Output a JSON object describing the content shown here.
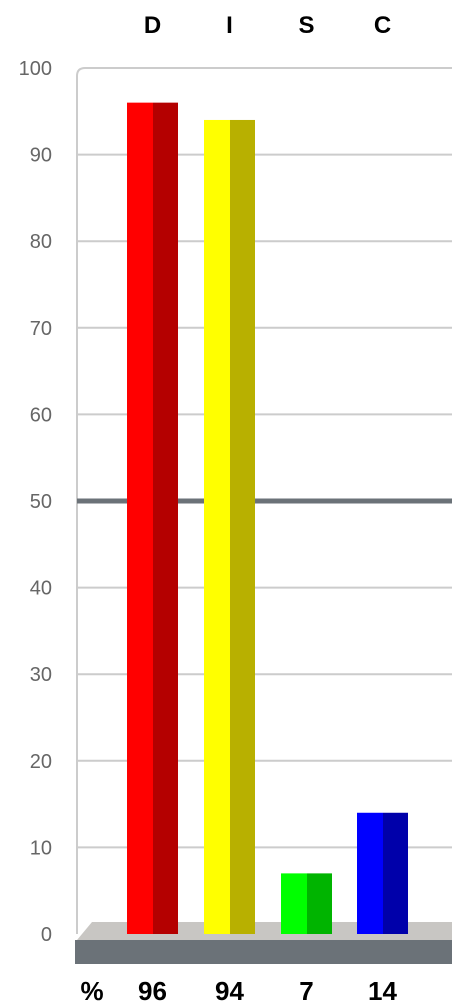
{
  "chart_data": {
    "type": "bar",
    "categories": [
      "D",
      "I",
      "S",
      "C"
    ],
    "values": [
      96,
      94,
      7,
      14
    ],
    "ylim": [
      0,
      100
    ],
    "yticks": [
      0,
      10,
      20,
      30,
      40,
      50,
      60,
      70,
      80,
      90,
      100
    ],
    "reference_line": 50,
    "grid": true,
    "value_prefix_label": "%",
    "colors": {
      "bars": [
        {
          "light": "#ff0000",
          "dark": "#b40000"
        },
        {
          "light": "#ffff00",
          "dark": "#b8b000"
        },
        {
          "light": "#00ff00",
          "dark": "#00b400"
        },
        {
          "light": "#0000ff",
          "dark": "#0000aa"
        }
      ],
      "grid": "#cccccc",
      "reference_line": "#6b7278",
      "floor_top": "#c8c6c3",
      "floor_front": "#6b7278"
    }
  }
}
